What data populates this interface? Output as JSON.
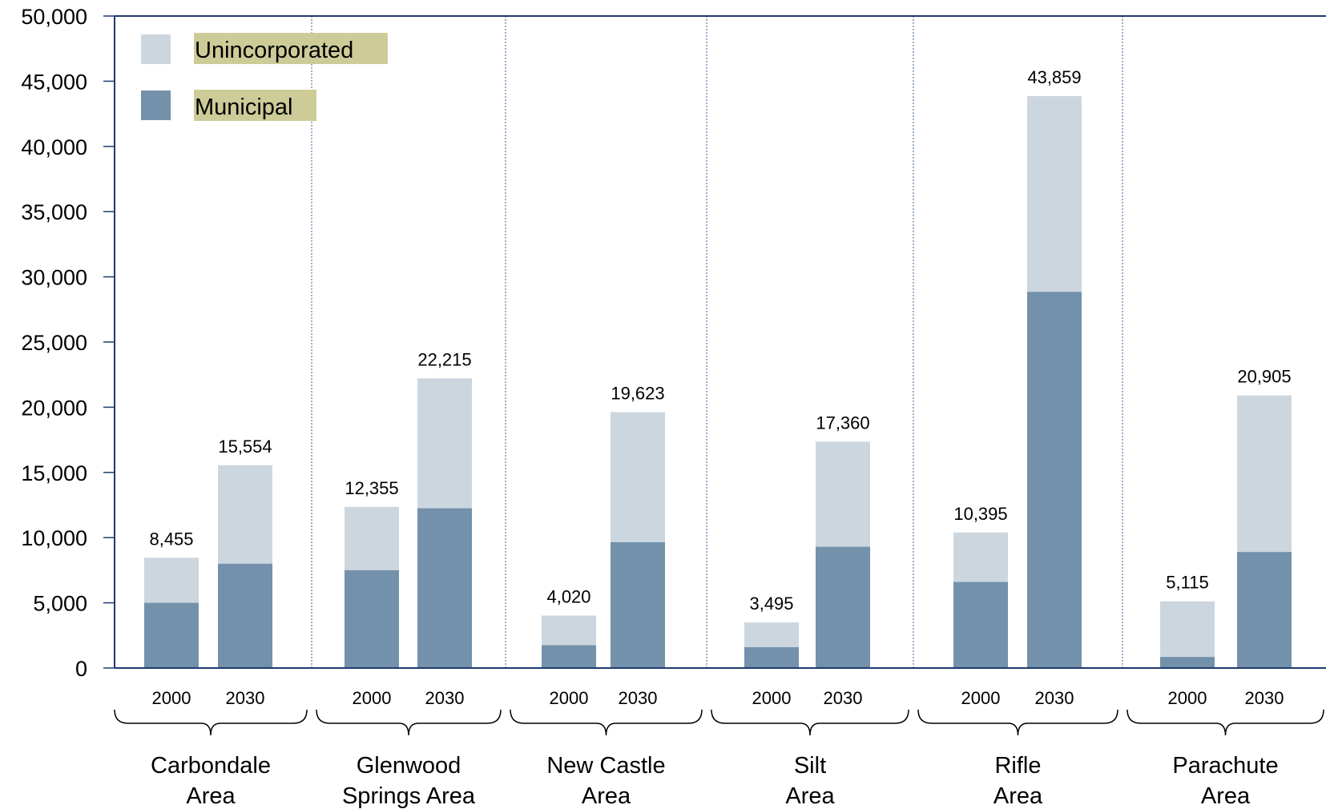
{
  "chart_data": {
    "type": "bar",
    "stacked": true,
    "ylim": [
      0,
      50000
    ],
    "yticks": [
      0,
      5000,
      10000,
      15000,
      20000,
      25000,
      30000,
      35000,
      40000,
      45000,
      50000
    ],
    "ytick_labels": [
      "0",
      "5,000",
      "10,000",
      "15,000",
      "20,000",
      "25,000",
      "30,000",
      "35,000",
      "40,000",
      "45,000",
      "50,000"
    ],
    "legend_position": "top-left",
    "groups": [
      {
        "label": "Carbondale\nArea",
        "bars": [
          {
            "year": "2000",
            "municipal": 5000,
            "total": 8455,
            "total_label": "8,455"
          },
          {
            "year": "2030",
            "municipal": 8000,
            "total": 15554,
            "total_label": "15,554"
          }
        ]
      },
      {
        "label": "Glenwood\nSprings Area",
        "bars": [
          {
            "year": "2000",
            "municipal": 7500,
            "total": 12355,
            "total_label": "12,355"
          },
          {
            "year": "2030",
            "municipal": 12250,
            "total": 22215,
            "total_label": "22,215"
          }
        ]
      },
      {
        "label": "New Castle\nArea",
        "bars": [
          {
            "year": "2000",
            "municipal": 1750,
            "total": 4020,
            "total_label": "4,020"
          },
          {
            "year": "2030",
            "municipal": 9650,
            "total": 19623,
            "total_label": "19,623"
          }
        ]
      },
      {
        "label": "Silt\nArea",
        "bars": [
          {
            "year": "2000",
            "municipal": 1600,
            "total": 3495,
            "total_label": "3,495"
          },
          {
            "year": "2030",
            "municipal": 9300,
            "total": 17360,
            "total_label": "17,360"
          }
        ]
      },
      {
        "label": "Rifle\nArea",
        "bars": [
          {
            "year": "2000",
            "municipal": 6600,
            "total": 10395,
            "total_label": "10,395"
          },
          {
            "year": "2030",
            "municipal": 28850,
            "total": 43859,
            "total_label": "43,859"
          }
        ]
      },
      {
        "label": "Parachute\nArea",
        "bars": [
          {
            "year": "2000",
            "municipal": 850,
            "total": 5115,
            "total_label": "5,115"
          },
          {
            "year": "2030",
            "municipal": 8900,
            "total": 20905,
            "total_label": "20,905"
          }
        ]
      }
    ],
    "series": [
      {
        "name": "Unincorporated",
        "color": "#ccd6df"
      },
      {
        "name": "Municipal",
        "color": "#7391ab"
      }
    ],
    "colors": {
      "axis": "#1f3b6e",
      "divider": "#5a7aa0",
      "legend_highlight": "#cdcc99"
    }
  }
}
